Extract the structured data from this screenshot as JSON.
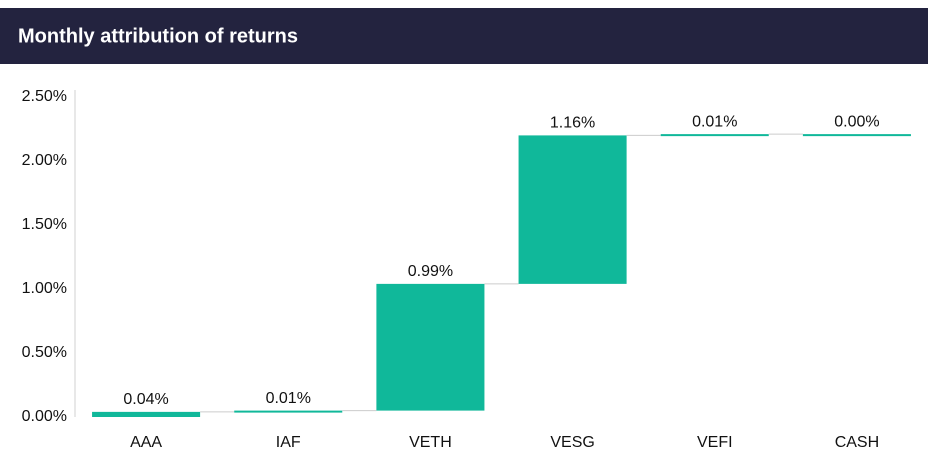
{
  "chart_data": {
    "type": "waterfall",
    "title": "Monthly attribution of returns",
    "categories": [
      "AAA",
      "IAF",
      "VETH",
      "VESG",
      "VEFI",
      "CASH"
    ],
    "values": [
      0.04,
      0.01,
      0.99,
      1.16,
      0.01,
      0.0
    ],
    "value_labels": [
      "0.04%",
      "0.01%",
      "0.99%",
      "1.16%",
      "0.01%",
      "0.00%"
    ],
    "color": "#10b89a",
    "ylim": [
      0,
      2.5
    ],
    "yticks": [
      {
        "value": 0,
        "label": "0.00%"
      },
      {
        "value": 0.5,
        "label": "0.50%"
      },
      {
        "value": 1,
        "label": "1.00%"
      },
      {
        "value": 1.5,
        "label": "1.50%"
      },
      {
        "value": 2,
        "label": "2.00%"
      },
      {
        "value": 2.5,
        "label": "2.50%"
      }
    ],
    "grid": false
  }
}
